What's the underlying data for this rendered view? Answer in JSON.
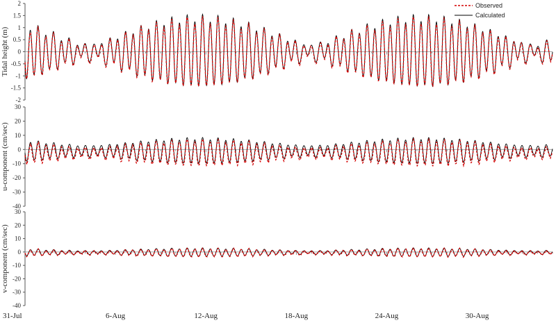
{
  "chart_data": {
    "type": "line",
    "legend_placement": "top-right",
    "legend": [
      {
        "label": "Observed",
        "color": "#d40000",
        "style": "dashed"
      },
      {
        "label": "Calculated",
        "color": "#000000",
        "style": "solid"
      }
    ],
    "x_axis": {
      "start_date": "31-Jul",
      "end_date": "4-Sep",
      "tick_labels": [
        "31-Jul",
        "6-Aug",
        "12-Aug",
        "18-Aug",
        "24-Aug",
        "30-Aug"
      ],
      "tick_days": [
        0,
        6,
        12,
        18,
        24,
        30
      ],
      "range_days": [
        0,
        35
      ]
    },
    "panels": [
      {
        "ylabel": "Tidal height (m)",
        "ylim": [
          -2,
          2
        ],
        "yticks": [
          -2,
          -1.5,
          -1,
          -0.5,
          0,
          0.5,
          1,
          1.5,
          2
        ],
        "ytick_labels": [
          "-2",
          "-1.5",
          "-1",
          "-0.5",
          "0",
          "0.5",
          "1",
          "1.5",
          "2"
        ],
        "series": [
          {
            "name": "Observed",
            "model": {
              "m2": 0.82,
              "s2": 0.55,
              "k1": 0.16,
              "offset": -0.05,
              "noise": 0.05
            }
          },
          {
            "name": "Calculated",
            "model": {
              "m2": 0.84,
              "s2": 0.56,
              "k1": 0.15,
              "offset": 0.0,
              "noise": 0.0
            }
          }
        ]
      },
      {
        "ylabel": "u-component (cm/sec)",
        "ylim": [
          -40,
          30
        ],
        "yticks": [
          -40,
          -30,
          -20,
          -10,
          0,
          10,
          20,
          30
        ],
        "ytick_labels": [
          "-40",
          "-30",
          "-20",
          "-10",
          "0",
          "10",
          "20",
          "30"
        ],
        "series": [
          {
            "name": "Observed",
            "model": {
              "m2": 6.0,
              "s2": 2.8,
              "k1": 1.0,
              "offset": -2.5,
              "noise": 0.9
            }
          },
          {
            "name": "Calculated",
            "model": {
              "m2": 6.2,
              "s2": 2.5,
              "k1": 0.8,
              "offset": -1.0,
              "noise": 0.0
            }
          }
        ]
      },
      {
        "ylabel": "v-component (cm/sec)",
        "ylim": [
          -40,
          30
        ],
        "yticks": [
          -40,
          -30,
          -20,
          -10,
          0,
          10,
          20,
          30
        ],
        "ytick_labels": [
          "-40",
          "-30",
          "-20",
          "-10",
          "0",
          "10",
          "20",
          "30"
        ],
        "series": [
          {
            "name": "Observed",
            "model": {
              "m2": 2.0,
              "s2": 0.9,
              "k1": 0.4,
              "offset": -0.6,
              "noise": 0.6
            }
          },
          {
            "name": "Calculated",
            "model": {
              "m2": 2.1,
              "s2": 0.9,
              "k1": 0.4,
              "offset": -0.3,
              "noise": 0.0
            }
          }
        ]
      }
    ]
  }
}
